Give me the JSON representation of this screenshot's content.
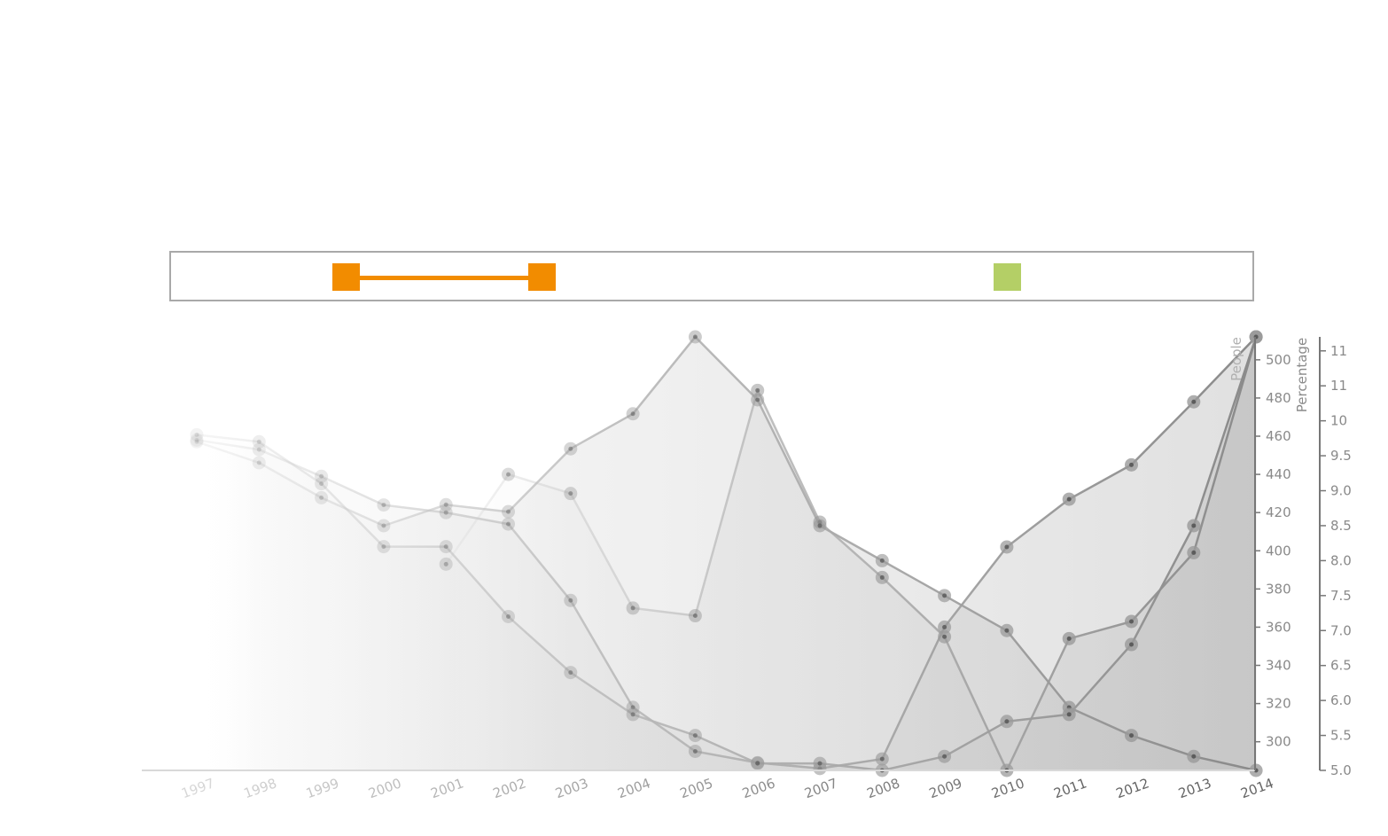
{
  "chart_data": {
    "type": "area",
    "years": [
      "1997",
      "1998",
      "1999",
      "2000",
      "2001",
      "2002",
      "2003",
      "2004",
      "2005",
      "2006",
      "2007",
      "2008",
      "2009",
      "2010",
      "2011",
      "2012",
      "2013",
      "2014"
    ],
    "people_axis": {
      "label": "People",
      "ticks": [
        300,
        320,
        340,
        360,
        380,
        400,
        420,
        440,
        460,
        480,
        500
      ],
      "range": [
        285,
        512
      ]
    },
    "percentage_axis": {
      "label": "Percentage",
      "tick_values": [
        5.0,
        5.5,
        6.0,
        6.5,
        7.0,
        7.5,
        8.0,
        8.5,
        9.0,
        9.5,
        10.0,
        10.5,
        11.0
      ],
      "tick_labels": [
        "5.0",
        "5.5",
        "6.0",
        "6.5",
        "7.0",
        "7.5",
        "8.0",
        "8.5",
        "9.0",
        "9.5",
        "10",
        "11",
        "11"
      ],
      "range": [
        5.0,
        11.2
      ]
    },
    "series": [
      {
        "axis": "people",
        "values": [
          458,
          453,
          439,
          424,
          420,
          414,
          374,
          318,
          295,
          289,
          286,
          291,
          360,
          402,
          427,
          445,
          478,
          512
        ]
      },
      {
        "axis": "people",
        "values": [
          null,
          null,
          null,
          null,
          393,
          440,
          430,
          370,
          366,
          484,
          415,
          386,
          355,
          285,
          354,
          363,
          399,
          512
        ]
      },
      {
        "axis": "percentage",
        "values": [
          9.7,
          9.4,
          8.9,
          8.5,
          8.8,
          8.7,
          9.6,
          10.1,
          11.2,
          10.3,
          8.5,
          8.0,
          7.5,
          7.0,
          5.9,
          5.5,
          5.2,
          5.0
        ]
      },
      {
        "axis": "percentage",
        "values": [
          9.8,
          9.7,
          9.1,
          8.2,
          8.2,
          7.2,
          6.4,
          5.8,
          5.5,
          5.1,
          5.1,
          5.0,
          5.2,
          5.7,
          5.8,
          6.8,
          8.5,
          11.2
        ]
      }
    ]
  },
  "legend": {
    "slider_color": "#f28c00",
    "swatch_color": "#b4cf66",
    "border_color": "#a9a9a9"
  }
}
